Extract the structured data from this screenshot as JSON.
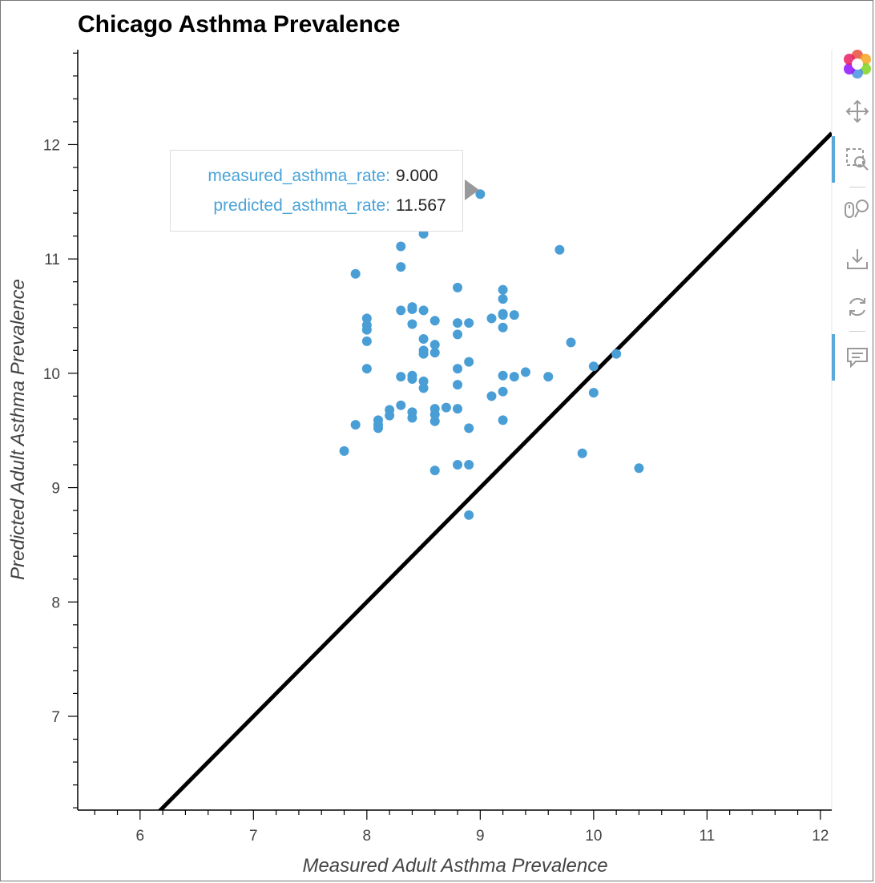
{
  "chart_data": {
    "type": "scatter",
    "title": "Chicago Asthma Prevalence",
    "xlabel": "Measured Adult Asthma Prevalence",
    "ylabel": "Predicted Adult Asthma Prevalence",
    "xlim": [
      5.45,
      12.1
    ],
    "ylim": [
      6.18,
      12.83
    ],
    "xticks": [
      "6",
      "7",
      "8",
      "9",
      "10",
      "11",
      "12"
    ],
    "yticks": [
      "7",
      "8",
      "9",
      "10",
      "11",
      "12"
    ],
    "reference_line": {
      "label": "",
      "color": "#000000",
      "x": [
        6.1,
        12.1
      ],
      "y": [
        6.1,
        12.1
      ]
    },
    "point_color": "#4a9ed6",
    "series": [
      {
        "points": [
          [
            9.0,
            11.567
          ],
          [
            7.8,
            9.32
          ],
          [
            7.9,
            10.87
          ],
          [
            7.9,
            9.55
          ],
          [
            8.0,
            10.48
          ],
          [
            8.0,
            10.42
          ],
          [
            8.0,
            10.38
          ],
          [
            8.0,
            10.28
          ],
          [
            8.0,
            10.04
          ],
          [
            8.1,
            9.59
          ],
          [
            8.1,
            9.55
          ],
          [
            8.1,
            9.52
          ],
          [
            8.2,
            9.68
          ],
          [
            8.2,
            9.63
          ],
          [
            8.3,
            11.11
          ],
          [
            8.3,
            10.93
          ],
          [
            8.3,
            10.55
          ],
          [
            8.3,
            9.97
          ],
          [
            8.3,
            9.72
          ],
          [
            8.4,
            10.58
          ],
          [
            8.4,
            10.56
          ],
          [
            8.4,
            10.43
          ],
          [
            8.4,
            9.98
          ],
          [
            8.4,
            9.95
          ],
          [
            8.4,
            9.66
          ],
          [
            8.4,
            9.61
          ],
          [
            8.5,
            11.22
          ],
          [
            8.5,
            10.55
          ],
          [
            8.5,
            10.3
          ],
          [
            8.5,
            10.2
          ],
          [
            8.5,
            10.17
          ],
          [
            8.5,
            9.93
          ],
          [
            8.5,
            9.87
          ],
          [
            8.6,
            10.46
          ],
          [
            8.6,
            10.25
          ],
          [
            8.6,
            10.18
          ],
          [
            8.6,
            9.69
          ],
          [
            8.6,
            9.64
          ],
          [
            8.6,
            9.58
          ],
          [
            8.6,
            9.15
          ],
          [
            8.7,
            9.7
          ],
          [
            8.8,
            10.75
          ],
          [
            8.8,
            10.44
          ],
          [
            8.8,
            10.34
          ],
          [
            8.8,
            10.04
          ],
          [
            8.8,
            9.9
          ],
          [
            8.8,
            9.69
          ],
          [
            8.8,
            9.2
          ],
          [
            8.9,
            10.44
          ],
          [
            8.9,
            10.1
          ],
          [
            8.9,
            9.52
          ],
          [
            8.9,
            9.2
          ],
          [
            8.9,
            8.76
          ],
          [
            9.1,
            10.48
          ],
          [
            9.1,
            9.8
          ],
          [
            9.2,
            10.73
          ],
          [
            9.2,
            10.65
          ],
          [
            9.2,
            10.52
          ],
          [
            9.2,
            10.51
          ],
          [
            9.2,
            10.4
          ],
          [
            9.2,
            9.98
          ],
          [
            9.2,
            9.84
          ],
          [
            9.2,
            9.59
          ],
          [
            9.3,
            10.51
          ],
          [
            9.3,
            9.97
          ],
          [
            9.4,
            10.01
          ],
          [
            9.6,
            9.97
          ],
          [
            9.7,
            11.08
          ],
          [
            9.8,
            10.27
          ],
          [
            9.9,
            9.3
          ],
          [
            10.0,
            10.06
          ],
          [
            10.0,
            9.83
          ],
          [
            10.2,
            10.17
          ],
          [
            10.4,
            9.17
          ]
        ]
      }
    ]
  },
  "tooltip": {
    "rows": [
      {
        "key": "measured_asthma_rate:",
        "value": "9.000"
      },
      {
        "key": "predicted_asthma_rate:",
        "value": "11.567"
      }
    ]
  },
  "toolbar": {
    "tools": [
      "bokeh-logo-icon",
      "pan-icon",
      "box-zoom-icon",
      "wheel-zoom-icon",
      "save-icon",
      "reset-icon",
      "hover-icon"
    ]
  }
}
